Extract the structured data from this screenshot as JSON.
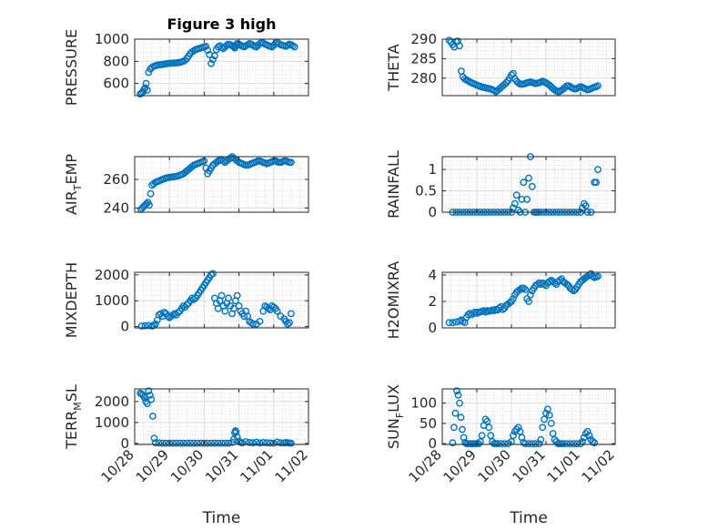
{
  "figure": {
    "title": "Figure 3 high",
    "xlabel": "Time",
    "xticks": [
      "10/28",
      "10/29",
      "10/30",
      "10/31",
      "11/01",
      "11/02"
    ],
    "marker_color": "#0072BD"
  },
  "chart_data": [
    {
      "type": "scatter",
      "title": "Figure 3 high",
      "ylabel": "PRESSURE",
      "ylabel_sub": "",
      "xlabel": "",
      "xlim": [
        0,
        5
      ],
      "ylim": [
        490,
        1000
      ],
      "yticks": [
        600,
        800,
        1000
      ],
      "grid": true,
      "x": [
        0.16,
        0.2,
        0.24,
        0.27,
        0.3,
        0.33,
        0.36,
        0.4,
        0.45,
        0.5,
        0.55,
        0.6,
        0.65,
        0.7,
        0.75,
        0.8,
        0.85,
        0.9,
        0.95,
        1.0,
        1.05,
        1.1,
        1.15,
        1.2,
        1.25,
        1.3,
        1.35,
        1.4,
        1.45,
        1.5,
        1.55,
        1.6,
        1.65,
        1.7,
        1.75,
        1.8,
        1.85,
        1.9,
        1.95,
        2.0,
        2.05,
        2.1,
        2.15,
        2.2,
        2.25,
        2.3,
        2.35,
        2.4,
        2.45,
        2.5,
        2.55,
        2.6,
        2.65,
        2.7,
        2.75,
        2.8,
        2.85,
        2.88,
        2.9,
        2.92,
        2.95,
        3.0,
        3.05,
        3.1,
        3.15,
        3.2,
        3.25,
        3.3,
        3.35,
        3.4,
        3.45,
        3.5,
        3.55,
        3.6,
        3.65,
        3.7,
        3.75,
        3.8,
        3.85,
        3.9,
        3.95,
        4.0,
        4.05,
        4.1,
        4.15,
        4.2,
        4.25,
        4.3,
        4.35,
        4.4,
        4.45,
        4.5,
        4.55,
        4.6
      ],
      "values": [
        505,
        515,
        525,
        545,
        560,
        600,
        540,
        700,
        730,
        745,
        755,
        760,
        765,
        768,
        770,
        772,
        775,
        778,
        780,
        782,
        783,
        784,
        785,
        786,
        788,
        790,
        795,
        800,
        810,
        825,
        845,
        870,
        885,
        895,
        905,
        910,
        915,
        920,
        925,
        930,
        935,
        900,
        860,
        780,
        815,
        850,
        905,
        930,
        940,
        925,
        915,
        930,
        945,
        955,
        950,
        940,
        930,
        920,
        935,
        950,
        960,
        955,
        945,
        935,
        930,
        940,
        950,
        960,
        955,
        945,
        935,
        930,
        945,
        960,
        970,
        965,
        955,
        950,
        940,
        935,
        930,
        945,
        960,
        970,
        960,
        950,
        945,
        940,
        935,
        945,
        955,
        950,
        940,
        930
      ]
    },
    {
      "type": "scatter",
      "title": "",
      "ylabel": "THETA",
      "ylabel_sub": "",
      "xlabel": "",
      "xlim": [
        0,
        5
      ],
      "ylim": [
        275.5,
        290
      ],
      "yticks": [
        280,
        285,
        290
      ],
      "grid": true,
      "x": [
        0.2,
        0.25,
        0.3,
        0.35,
        0.4,
        0.45,
        0.5,
        0.55,
        0.6,
        0.65,
        0.7,
        0.75,
        0.8,
        0.85,
        0.9,
        0.95,
        1.0,
        1.05,
        1.1,
        1.15,
        1.2,
        1.25,
        1.3,
        1.35,
        1.4,
        1.45,
        1.5,
        1.55,
        1.6,
        1.65,
        1.7,
        1.75,
        1.8,
        1.85,
        1.9,
        1.95,
        2.0,
        2.05,
        2.1,
        2.15,
        2.2,
        2.25,
        2.3,
        2.35,
        2.4,
        2.45,
        2.5,
        2.55,
        2.6,
        2.65,
        2.7,
        2.75,
        2.8,
        2.85,
        2.9,
        2.95,
        3.0,
        3.05,
        3.1,
        3.15,
        3.2,
        3.25,
        3.3,
        3.35,
        3.4,
        3.45,
        3.5,
        3.55,
        3.6,
        3.65,
        3.7,
        3.75,
        3.8,
        3.85,
        3.9,
        3.95,
        4.0,
        4.05,
        4.1,
        4.15,
        4.2,
        4.25,
        4.3,
        4.35,
        4.4,
        4.45,
        4.5
      ],
      "values": [
        289.7,
        289.3,
        288.6,
        288.0,
        289.4,
        289.5,
        288.3,
        281.8,
        280.3,
        279.8,
        279.5,
        279.3,
        279.0,
        278.8,
        278.6,
        278.4,
        278.2,
        278.0,
        277.9,
        277.7,
        277.6,
        277.5,
        277.4,
        277.3,
        277.2,
        277.0,
        276.8,
        276.5,
        276.8,
        277.2,
        277.6,
        278.0,
        278.4,
        278.8,
        279.3,
        280.0,
        280.8,
        281.2,
        279.8,
        279.2,
        278.8,
        278.5,
        278.4,
        278.5,
        278.6,
        278.8,
        278.9,
        279.0,
        278.9,
        278.7,
        278.6,
        278.7,
        278.8,
        279.0,
        279.2,
        279.0,
        278.8,
        278.5,
        278.2,
        277.8,
        277.3,
        277.0,
        276.7,
        276.5,
        276.6,
        276.9,
        277.2,
        277.6,
        278.0,
        278.0,
        277.8,
        277.5,
        277.3,
        277.2,
        277.4,
        277.6,
        277.8,
        277.6,
        277.4,
        277.2,
        277.0,
        277.1,
        277.3,
        277.5,
        277.7,
        277.8,
        278.0
      ]
    },
    {
      "type": "scatter",
      "title": "",
      "ylabel": "AIR",
      "ylabel_sub": "T",
      "ylabel_after": "EMP",
      "xlabel": "",
      "xlim": [
        0,
        5
      ],
      "ylim": [
        237,
        276
      ],
      "yticks": [
        240,
        260
      ],
      "grid": true,
      "x": [
        0.18,
        0.22,
        0.26,
        0.3,
        0.34,
        0.38,
        0.42,
        0.46,
        0.5,
        0.55,
        0.6,
        0.65,
        0.7,
        0.75,
        0.8,
        0.85,
        0.9,
        0.95,
        1.0,
        1.05,
        1.1,
        1.15,
        1.2,
        1.25,
        1.3,
        1.35,
        1.4,
        1.45,
        1.5,
        1.55,
        1.6,
        1.65,
        1.7,
        1.75,
        1.8,
        1.85,
        1.9,
        1.95,
        2.0,
        2.05,
        2.1,
        2.15,
        2.2,
        2.25,
        2.3,
        2.35,
        2.4,
        2.45,
        2.5,
        2.55,
        2.6,
        2.65,
        2.7,
        2.75,
        2.8,
        2.85,
        2.9,
        2.95,
        3.0,
        3.05,
        3.1,
        3.15,
        3.2,
        3.25,
        3.3,
        3.35,
        3.4,
        3.45,
        3.5,
        3.55,
        3.6,
        3.65,
        3.7,
        3.75,
        3.8,
        3.85,
        3.9,
        3.95,
        4.0,
        4.05,
        4.1,
        4.15,
        4.2,
        4.25,
        4.3,
        4.35,
        4.4,
        4.45,
        4.5
      ],
      "values": [
        239,
        240,
        241,
        242,
        243,
        244,
        242,
        250,
        256,
        257,
        258,
        258.5,
        259,
        259.5,
        260,
        260.5,
        261,
        261.2,
        261.4,
        261.6,
        261.8,
        262,
        262.2,
        262.5,
        263,
        263.5,
        264,
        265,
        266,
        267,
        268,
        269,
        270,
        270.5,
        271,
        271.5,
        272,
        272.5,
        273,
        268,
        264,
        266,
        268,
        270,
        271,
        272,
        273,
        273.5,
        274,
        273,
        272,
        273,
        274,
        275,
        276,
        275,
        274,
        273,
        272,
        271.5,
        271,
        270.5,
        270,
        270,
        270.5,
        271,
        271.5,
        272,
        272.5,
        273,
        273,
        272.5,
        272,
        271.5,
        271,
        271.5,
        272,
        272.5,
        273,
        273,
        272.5,
        272,
        272,
        272.5,
        273,
        273,
        272.5,
        272,
        272
      ]
    },
    {
      "type": "scatter",
      "title": "",
      "ylabel": "RAINFALL",
      "ylabel_sub": "",
      "xlabel": "",
      "xlim": [
        0,
        5
      ],
      "ylim": [
        0,
        1.3
      ],
      "yticks": [
        0,
        0.5,
        1
      ],
      "grid": true,
      "x": [
        0.3,
        0.4,
        0.5,
        0.6,
        0.7,
        0.8,
        0.9,
        1.0,
        1.1,
        1.2,
        1.3,
        1.4,
        1.5,
        1.6,
        1.7,
        1.8,
        1.9,
        2.0,
        2.05,
        2.1,
        2.15,
        2.2,
        2.25,
        2.3,
        2.35,
        2.4,
        2.45,
        2.5,
        2.55,
        2.6,
        2.65,
        2.7,
        2.75,
        2.8,
        2.9,
        3.0,
        3.1,
        3.2,
        3.3,
        3.4,
        3.5,
        3.6,
        3.7,
        3.8,
        3.9,
        4.0,
        4.05,
        4.1,
        4.15,
        4.2,
        4.3,
        4.4,
        4.45,
        4.5
      ],
      "values": [
        0,
        0,
        0,
        0,
        0,
        0,
        0,
        0,
        0,
        0,
        0,
        0,
        0,
        0,
        0,
        0,
        0,
        0,
        0.1,
        0.2,
        0.4,
        0.05,
        0,
        0.3,
        0.7,
        0,
        0.3,
        0.8,
        1.3,
        0.6,
        0,
        0,
        0,
        0,
        0,
        0,
        0,
        0,
        0,
        0,
        0,
        0,
        0,
        0,
        0,
        0,
        0.1,
        0.2,
        0.15,
        0,
        0,
        0.7,
        0.7,
        1.0
      ]
    },
    {
      "type": "scatter",
      "title": "",
      "ylabel": "MIXDEPTH",
      "ylabel_sub": "",
      "xlabel": "",
      "xlim": [
        0,
        5
      ],
      "ylim": [
        -50,
        2100
      ],
      "yticks": [
        0,
        1000,
        2000
      ],
      "grid": true,
      "x": [
        0.2,
        0.3,
        0.4,
        0.5,
        0.55,
        0.6,
        0.65,
        0.7,
        0.75,
        0.8,
        0.85,
        0.9,
        0.95,
        1.0,
        1.05,
        1.1,
        1.15,
        1.2,
        1.25,
        1.3,
        1.35,
        1.4,
        1.45,
        1.5,
        1.55,
        1.6,
        1.65,
        1.7,
        1.75,
        1.8,
        1.85,
        1.9,
        1.95,
        2.0,
        2.05,
        2.1,
        2.15,
        2.2,
        2.25,
        2.3,
        2.35,
        2.4,
        2.45,
        2.5,
        2.55,
        2.6,
        2.65,
        2.7,
        2.75,
        2.8,
        2.85,
        2.9,
        2.95,
        3.0,
        3.05,
        3.1,
        3.15,
        3.2,
        3.25,
        3.3,
        3.35,
        3.4,
        3.5,
        3.6,
        3.7,
        3.75,
        3.8,
        3.85,
        3.9,
        3.95,
        4.0,
        4.05,
        4.1,
        4.2,
        4.3,
        4.35,
        4.4,
        4.45,
        4.5
      ],
      "values": [
        20,
        30,
        40,
        20,
        50,
        100,
        250,
        450,
        500,
        400,
        550,
        500,
        400,
        350,
        400,
        450,
        500,
        450,
        550,
        600,
        700,
        800,
        750,
        850,
        900,
        1000,
        1100,
        1050,
        1100,
        1200,
        1300,
        1400,
        1500,
        1600,
        1700,
        1800,
        1900,
        2000,
        2050,
        1100,
        900,
        700,
        1000,
        1200,
        800,
        600,
        900,
        1100,
        800,
        500,
        700,
        1000,
        1200,
        800,
        600,
        500,
        400,
        600,
        400,
        200,
        150,
        100,
        100,
        200,
        600,
        800,
        750,
        700,
        650,
        800,
        750,
        700,
        600,
        400,
        300,
        200,
        100,
        150,
        500
      ]
    },
    {
      "type": "scatter",
      "title": "",
      "ylabel": "H2OMIXRA",
      "ylabel_sub": "",
      "xlabel": "",
      "xlim": [
        0,
        5
      ],
      "ylim": [
        0,
        4.2
      ],
      "yticks": [
        0,
        2,
        4
      ],
      "grid": true,
      "x": [
        0.2,
        0.3,
        0.4,
        0.5,
        0.55,
        0.6,
        0.65,
        0.7,
        0.75,
        0.8,
        0.85,
        0.9,
        0.95,
        1.0,
        1.05,
        1.1,
        1.15,
        1.2,
        1.25,
        1.3,
        1.35,
        1.4,
        1.45,
        1.5,
        1.55,
        1.6,
        1.65,
        1.7,
        1.75,
        1.8,
        1.85,
        1.9,
        1.95,
        2.0,
        2.05,
        2.1,
        2.15,
        2.2,
        2.25,
        2.3,
        2.35,
        2.4,
        2.45,
        2.5,
        2.55,
        2.6,
        2.65,
        2.7,
        2.75,
        2.8,
        2.85,
        2.9,
        2.95,
        3.0,
        3.05,
        3.1,
        3.15,
        3.2,
        3.25,
        3.3,
        3.35,
        3.4,
        3.45,
        3.5,
        3.55,
        3.6,
        3.65,
        3.7,
        3.75,
        3.8,
        3.85,
        3.9,
        3.95,
        4.0,
        4.05,
        4.1,
        4.15,
        4.2,
        4.25,
        4.3,
        4.35,
        4.4,
        4.45,
        4.5
      ],
      "values": [
        0.4,
        0.4,
        0.45,
        0.5,
        0.6,
        0.5,
        0.4,
        0.8,
        1.0,
        1.1,
        1.0,
        1.1,
        1.2,
        1.1,
        1.2,
        1.2,
        1.25,
        1.3,
        1.2,
        1.3,
        1.25,
        1.3,
        1.35,
        1.3,
        1.4,
        1.35,
        1.5,
        1.6,
        1.4,
        1.5,
        1.7,
        1.8,
        1.9,
        2.0,
        2.2,
        2.5,
        2.7,
        2.8,
        2.9,
        3.0,
        3.0,
        2.9,
        2.2,
        2.0,
        2.5,
        2.8,
        3.0,
        3.2,
        3.3,
        3.4,
        3.3,
        3.4,
        3.3,
        3.2,
        3.4,
        3.5,
        3.6,
        3.5,
        3.4,
        3.3,
        3.5,
        3.6,
        3.7,
        3.5,
        3.4,
        3.3,
        3.2,
        3.0,
        2.9,
        2.8,
        2.9,
        3.1,
        3.3,
        3.5,
        3.6,
        3.7,
        3.8,
        3.9,
        4.0,
        4.1,
        3.9,
        3.8,
        3.85,
        3.9
      ]
    },
    {
      "type": "scatter",
      "title": "",
      "ylabel": "TERR",
      "ylabel_sub": "M",
      "ylabel_after": "SL",
      "xlabel": "Time",
      "xlim": [
        0,
        5
      ],
      "ylim": [
        -50,
        2600
      ],
      "yticks": [
        0,
        1000,
        2000
      ],
      "xticks": [
        "10/28",
        "10/29",
        "10/30",
        "10/31",
        "11/01",
        "11/02"
      ],
      "grid": true,
      "x": [
        0.16,
        0.2,
        0.24,
        0.28,
        0.32,
        0.36,
        0.4,
        0.44,
        0.48,
        0.52,
        0.56,
        0.6,
        0.7,
        0.8,
        0.9,
        1.0,
        1.1,
        1.2,
        1.3,
        1.4,
        1.5,
        1.6,
        1.7,
        1.8,
        1.9,
        2.0,
        2.1,
        2.2,
        2.3,
        2.4,
        2.5,
        2.6,
        2.7,
        2.8,
        2.85,
        2.88,
        2.9,
        2.92,
        2.95,
        3.0,
        3.05,
        3.1,
        3.2,
        3.3,
        3.4,
        3.5,
        3.6,
        3.7,
        3.8,
        3.9,
        4.0,
        4.1,
        4.2,
        4.3,
        4.35,
        4.4,
        4.45,
        4.5
      ],
      "values": [
        2400,
        2350,
        2300,
        2200,
        2000,
        1900,
        2500,
        2300,
        2100,
        1300,
        250,
        30,
        20,
        10,
        10,
        10,
        10,
        10,
        10,
        10,
        10,
        10,
        10,
        10,
        10,
        10,
        10,
        10,
        10,
        10,
        10,
        10,
        10,
        50,
        200,
        500,
        600,
        550,
        300,
        100,
        50,
        30,
        80,
        40,
        30,
        60,
        20,
        40,
        30,
        20,
        10,
        60,
        30,
        20,
        40,
        30,
        20,
        10
      ]
    },
    {
      "type": "scatter",
      "title": "",
      "ylabel": "SUN",
      "ylabel_sub": "F",
      "ylabel_after": "LUX",
      "xlabel": "Time",
      "xlim": [
        0,
        5
      ],
      "ylim": [
        -2,
        135
      ],
      "yticks": [
        0,
        50,
        100
      ],
      "xticks": [
        "10/28",
        "10/29",
        "10/30",
        "10/31",
        "11/01",
        "11/02"
      ],
      "grid": true,
      "x": [
        0.3,
        0.34,
        0.38,
        0.42,
        0.46,
        0.5,
        0.54,
        0.58,
        0.62,
        0.66,
        0.7,
        0.75,
        0.8,
        0.85,
        0.9,
        0.95,
        1.0,
        1.05,
        1.1,
        1.15,
        1.2,
        1.25,
        1.3,
        1.35,
        1.4,
        1.45,
        1.5,
        1.55,
        1.6,
        1.7,
        1.8,
        1.9,
        2.0,
        2.05,
        2.1,
        2.15,
        2.2,
        2.25,
        2.3,
        2.35,
        2.4,
        2.5,
        2.6,
        2.7,
        2.8,
        2.85,
        2.9,
        2.95,
        3.0,
        3.05,
        3.1,
        3.15,
        3.2,
        3.25,
        3.3,
        3.35,
        3.4,
        3.45,
        3.5,
        3.6,
        3.7,
        3.8,
        3.9,
        4.0,
        4.05,
        4.1,
        4.15,
        4.2,
        4.25,
        4.3,
        4.35,
        4.4
      ],
      "values": [
        2,
        40,
        75,
        130,
        120,
        100,
        65,
        35,
        15,
        3,
        0,
        0,
        0,
        0,
        0,
        0,
        0,
        0,
        5,
        20,
        45,
        60,
        55,
        40,
        20,
        5,
        0,
        0,
        0,
        0,
        0,
        0,
        5,
        20,
        30,
        35,
        40,
        30,
        15,
        3,
        0,
        0,
        0,
        0,
        0,
        10,
        40,
        60,
        75,
        85,
        70,
        50,
        25,
        10,
        5,
        0,
        0,
        0,
        0,
        0,
        0,
        0,
        0,
        0,
        5,
        15,
        25,
        30,
        20,
        10,
        5,
        2
      ]
    }
  ]
}
